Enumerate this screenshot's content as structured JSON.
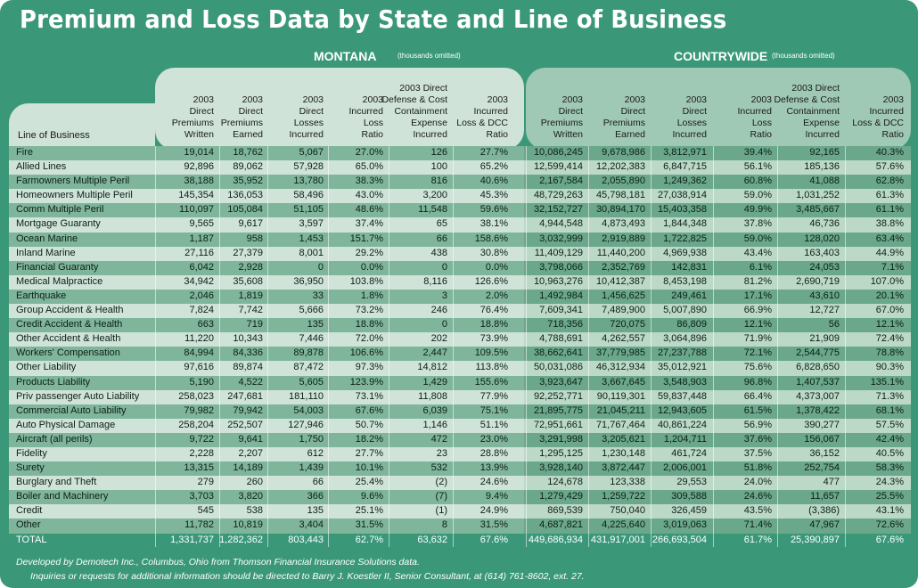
{
  "title": "Premium and Loss Data by State and Line of Business",
  "montana": {
    "label": "MONTANA",
    "note": "(thousands omitted)"
  },
  "countrywide": {
    "label": "COUNTRYWIDE",
    "note": "(thousands omitted)"
  },
  "line_of_business_header": "Line of Business",
  "montana_columns": [
    "2003\nDirect\nPremiums\nWritten",
    "2003\nDirect\nPremiums\nEarned",
    "2003\nDirect\nLosses\nIncurred",
    "2003\nIncurred\nLoss\nRatio",
    "2003 Direct\nDefense & Cost\nContainment\nExpense\nIncurred",
    "2003\nIncurred\nLoss & DCC\nRatio"
  ],
  "countrywide_columns": [
    "2003\nDirect\nPremiums\nWritten",
    "2003\nDirect\nPremiums\nEarned",
    "2003\nDirect\nLosses\nIncurred",
    "2003\nIncurred\nLoss\nRatio",
    "2003 Direct\nDefense & Cost\nContainment\nExpense\nIncurred",
    "2003\nIncurred\nLoss & DCC\nRatio"
  ],
  "rows": [
    {
      "line": "Fire",
      "mt": [
        "19,014",
        "18,762",
        "5,067",
        "27.0%",
        "126",
        "27.7%"
      ],
      "cw": [
        "10,086,245",
        "9,678,986",
        "3,812,971",
        "39.4%",
        "92,165",
        "40.3%"
      ]
    },
    {
      "line": "Allied Lines",
      "mt": [
        "92,896",
        "89,062",
        "57,928",
        "65.0%",
        "100",
        "65.2%"
      ],
      "cw": [
        "12,599,414",
        "12,202,383",
        "6,847,715",
        "56.1%",
        "185,136",
        "57.6%"
      ]
    },
    {
      "line": "Farmowners Multiple Peril",
      "mt": [
        "38,188",
        "35,952",
        "13,780",
        "38.3%",
        "816",
        "40.6%"
      ],
      "cw": [
        "2,167,584",
        "2,055,890",
        "1,249,362",
        "60.8%",
        "41,088",
        "62.8%"
      ]
    },
    {
      "line": "Homeowners Multiple Peril",
      "mt": [
        "145,354",
        "136,053",
        "58,496",
        "43.0%",
        "3,200",
        "45.3%"
      ],
      "cw": [
        "48,729,263",
        "45,798,181",
        "27,038,914",
        "59.0%",
        "1,031,252",
        "61.3%"
      ]
    },
    {
      "line": "Comm Multiple Peril",
      "mt": [
        "110,097",
        "105,084",
        "51,105",
        "48.6%",
        "11,548",
        "59.6%"
      ],
      "cw": [
        "32,152,727",
        "30,894,170",
        "15,403,358",
        "49.9%",
        "3,485,667",
        "61.1%"
      ]
    },
    {
      "line": "Mortgage Guaranty",
      "mt": [
        "9,565",
        "9,617",
        "3,597",
        "37.4%",
        "65",
        "38.1%"
      ],
      "cw": [
        "4,944,548",
        "4,873,493",
        "1,844,348",
        "37.8%",
        "46,736",
        "38.8%"
      ]
    },
    {
      "line": "Ocean Marine",
      "mt": [
        "1,187",
        "958",
        "1,453",
        "151.7%",
        "66",
        "158.6%"
      ],
      "cw": [
        "3,032,999",
        "2,919,889",
        "1,722,825",
        "59.0%",
        "128,020",
        "63.4%"
      ]
    },
    {
      "line": "Inland Marine",
      "mt": [
        "27,116",
        "27,379",
        "8,001",
        "29.2%",
        "438",
        "30.8%"
      ],
      "cw": [
        "11,409,129",
        "11,440,200",
        "4,969,938",
        "43.4%",
        "163,403",
        "44.9%"
      ]
    },
    {
      "line": "Financial Guaranty",
      "mt": [
        "6,042",
        "2,928",
        "0",
        "0.0%",
        "0",
        "0.0%"
      ],
      "cw": [
        "3,798,066",
        "2,352,769",
        "142,831",
        "6.1%",
        "24,053",
        "7.1%"
      ]
    },
    {
      "line": "Medical Malpractice",
      "mt": [
        "34,942",
        "35,608",
        "36,950",
        "103.8%",
        "8,116",
        "126.6%"
      ],
      "cw": [
        "10,963,276",
        "10,412,387",
        "8,453,198",
        "81.2%",
        "2,690,719",
        "107.0%"
      ]
    },
    {
      "line": "Earthquake",
      "mt": [
        "2,046",
        "1,819",
        "33",
        "1.8%",
        "3",
        "2.0%"
      ],
      "cw": [
        "1,492,984",
        "1,456,625",
        "249,461",
        "17.1%",
        "43,610",
        "20.1%"
      ]
    },
    {
      "line": "Group Accident & Health",
      "mt": [
        "7,824",
        "7,742",
        "5,666",
        "73.2%",
        "246",
        "76.4%"
      ],
      "cw": [
        "7,609,341",
        "7,489,900",
        "5,007,890",
        "66.9%",
        "12,727",
        "67.0%"
      ]
    },
    {
      "line": "Credit Accident & Health",
      "mt": [
        "663",
        "719",
        "135",
        "18.8%",
        "0",
        "18.8%"
      ],
      "cw": [
        "718,356",
        "720,075",
        "86,809",
        "12.1%",
        "56",
        "12.1%"
      ]
    },
    {
      "line": "Other Accident & Health",
      "mt": [
        "11,220",
        "10,343",
        "7,446",
        "72.0%",
        "202",
        "73.9%"
      ],
      "cw": [
        "4,788,691",
        "4,262,557",
        "3,064,896",
        "71.9%",
        "21,909",
        "72.4%"
      ]
    },
    {
      "line": "Workers' Compensation",
      "mt": [
        "84,994",
        "84,336",
        "89,878",
        "106.6%",
        "2,447",
        "109.5%"
      ],
      "cw": [
        "38,662,641",
        "37,779,985",
        "27,237,788",
        "72.1%",
        "2,544,775",
        "78.8%"
      ]
    },
    {
      "line": "Other Liability",
      "mt": [
        "97,616",
        "89,874",
        "87,472",
        "97.3%",
        "14,812",
        "113.8%"
      ],
      "cw": [
        "50,031,086",
        "46,312,934",
        "35,012,921",
        "75.6%",
        "6,828,650",
        "90.3%"
      ]
    },
    {
      "line": "Products Liability",
      "mt": [
        "5,190",
        "4,522",
        "5,605",
        "123.9%",
        "1,429",
        "155.6%"
      ],
      "cw": [
        "3,923,647",
        "3,667,645",
        "3,548,903",
        "96.8%",
        "1,407,537",
        "135.1%"
      ]
    },
    {
      "line": "Priv passenger Auto Liability",
      "mt": [
        "258,023",
        "247,681",
        "181,110",
        "73.1%",
        "11,808",
        "77.9%"
      ],
      "cw": [
        "92,252,771",
        "90,119,301",
        "59,837,448",
        "66.4%",
        "4,373,007",
        "71.3%"
      ]
    },
    {
      "line": "Commercial Auto Liability",
      "mt": [
        "79,982",
        "79,942",
        "54,003",
        "67.6%",
        "6,039",
        "75.1%"
      ],
      "cw": [
        "21,895,775",
        "21,045,211",
        "12,943,605",
        "61.5%",
        "1,378,422",
        "68.1%"
      ]
    },
    {
      "line": "Auto Physical Damage",
      "mt": [
        "258,204",
        "252,507",
        "127,946",
        "50.7%",
        "1,146",
        "51.1%"
      ],
      "cw": [
        "72,951,661",
        "71,767,464",
        "40,861,224",
        "56.9%",
        "390,277",
        "57.5%"
      ]
    },
    {
      "line": "Aircraft (all perils)",
      "mt": [
        "9,722",
        "9,641",
        "1,750",
        "18.2%",
        "472",
        "23.0%"
      ],
      "cw": [
        "3,291,998",
        "3,205,621",
        "1,204,711",
        "37.6%",
        "156,067",
        "42.4%"
      ]
    },
    {
      "line": "Fidelity",
      "mt": [
        "2,228",
        "2,207",
        "612",
        "27.7%",
        "23",
        "28.8%"
      ],
      "cw": [
        "1,295,125",
        "1,230,148",
        "461,724",
        "37.5%",
        "36,152",
        "40.5%"
      ]
    },
    {
      "line": "Surety",
      "mt": [
        "13,315",
        "14,189",
        "1,439",
        "10.1%",
        "532",
        "13.9%"
      ],
      "cw": [
        "3,928,140",
        "3,872,447",
        "2,006,001",
        "51.8%",
        "252,754",
        "58.3%"
      ]
    },
    {
      "line": "Burglary and Theft",
      "mt": [
        "279",
        "260",
        "66",
        "25.4%",
        "(2)",
        "24.6%"
      ],
      "cw": [
        "124,678",
        "123,338",
        "29,553",
        "24.0%",
        "477",
        "24.3%"
      ]
    },
    {
      "line": "Boiler and Machinery",
      "mt": [
        "3,703",
        "3,820",
        "366",
        "9.6%",
        "(7)",
        "9.4%"
      ],
      "cw": [
        "1,279,429",
        "1,259,722",
        "309,588",
        "24.6%",
        "11,657",
        "25.5%"
      ]
    },
    {
      "line": "Credit",
      "mt": [
        "545",
        "538",
        "135",
        "25.1%",
        "(1)",
        "24.9%"
      ],
      "cw": [
        "869,539",
        "750,040",
        "326,459",
        "43.5%",
        "(3,386)",
        "43.1%"
      ]
    },
    {
      "line": "Other",
      "mt": [
        "11,782",
        "10,819",
        "3,404",
        "31.5%",
        "8",
        "31.5%"
      ],
      "cw": [
        "4,687,821",
        "4,225,640",
        "3,019,063",
        "71.4%",
        "47,967",
        "72.6%"
      ]
    },
    {
      "line": "TOTAL",
      "mt": [
        "1,331,737",
        "1,282,362",
        "803,443",
        "62.7%",
        "63,632",
        "67.6%"
      ],
      "cw": [
        "449,686,934",
        "431,917,001",
        "266,693,504",
        "61.7%",
        "25,390,897",
        "67.6%"
      ]
    }
  ],
  "footer": {
    "line1": "Developed by Demotech Inc., Columbus, Ohio from Thomson Financial Insurance Solutions data.",
    "line2": "Inquiries or requests for additional information should be directed to Barry J. Koestler II, Senior Consultant, at (614) 761-8602, ext. 27."
  },
  "colors": {
    "frame": "#3a9879",
    "light_row": "#cfe3d8",
    "dark_row": "#7fb59b"
  }
}
